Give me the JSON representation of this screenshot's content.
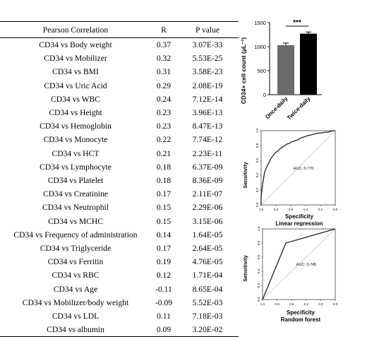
{
  "table": {
    "headers": [
      "Pearson Correlation",
      "R",
      "P value"
    ],
    "rows": [
      {
        "name": "CD34 vs Body weight",
        "r": "0.37",
        "p": "3.07E-33"
      },
      {
        "name": "CD34 vs Mobilizer",
        "r": "0.32",
        "p": "5.53E-25"
      },
      {
        "name": "CD34 vs BMI",
        "r": "0.31",
        "p": "3.58E-23"
      },
      {
        "name": "CD34 vs Uric Acid",
        "r": "0.29",
        "p": "2.08E-19"
      },
      {
        "name": "CD34 vs WBC",
        "r": "0.24",
        "p": "7.12E-14"
      },
      {
        "name": "CD34 vs Height",
        "r": "0.23",
        "p": "3.96E-13"
      },
      {
        "name": "CD34 vs Hemoglobin",
        "r": "0.23",
        "p": "8.47E-13"
      },
      {
        "name": "CD34 vs Monocyte",
        "r": "0.22",
        "p": "7.74E-12"
      },
      {
        "name": "CD34 vs HCT",
        "r": "0.21",
        "p": "2.23E-11"
      },
      {
        "name": "CD34 vs Lymphocyte",
        "r": "0.18",
        "p": "6.37E-09"
      },
      {
        "name": "CD34 vs Platelet",
        "r": "0.18",
        "p": "8.36E-09"
      },
      {
        "name": "CD34 vs Creatinine",
        "r": "0.17",
        "p": "2.11E-07"
      },
      {
        "name": "CD34 vs Neutrophil",
        "r": "0.15",
        "p": "2.29E-06"
      },
      {
        "name": "CD34 vs MCHC",
        "r": "0.15",
        "p": "3.15E-06"
      },
      {
        "name": "CD34 vs Frequency of administration",
        "r": "0.14",
        "p": "1.64E-05"
      },
      {
        "name": "CD34 vs Triglyceride",
        "r": "0.17",
        "p": "2.64E-05"
      },
      {
        "name": "CD34 vs Ferritin",
        "r": "0.19",
        "p": "4.76E-05"
      },
      {
        "name": "CD34 vs RBC",
        "r": "0.12",
        "p": "1.71E-04"
      },
      {
        "name": "CD34 vs Age",
        "r": "-0.11",
        "p": "8.65E-04"
      },
      {
        "name": "CD34 vs Mobilizer/body weight",
        "r": "-0.09",
        "p": "5.52E-03"
      },
      {
        "name": "CD34 vs LDL",
        "r": "0.11",
        "p": "7.18E-03"
      },
      {
        "name": "CD34 vs albumin",
        "r": "0.09",
        "p": "3.20E-02"
      }
    ]
  },
  "chart_data": [
    {
      "type": "bar",
      "categories": [
        "Once-daily",
        "Twice-daily"
      ],
      "values": [
        1030,
        1270
      ],
      "errors": [
        45,
        35
      ],
      "colors": [
        "#6b6b6b",
        "#000000"
      ],
      "ylabel": "CD34+ cell count (μL⁻¹)",
      "yticks": [
        "0",
        "500",
        "1000",
        "1500"
      ],
      "ylim": [
        0,
        1500
      ],
      "significance": "***"
    },
    {
      "type": "line",
      "title": "Linear regression",
      "xlabel": "Specificity",
      "ylabel": "Sensitivity",
      "auc_label": "AUC: 0.770",
      "xticks": [
        "1.0",
        "0.8",
        "0.6",
        "0.4",
        "0.2",
        "0.0"
      ],
      "yticks": [
        "0.0",
        "0.2",
        "0.4",
        "0.6",
        "0.8",
        "1.0"
      ],
      "x_reversed": true,
      "xlim": [
        1.0,
        0.0
      ],
      "ylim": [
        0.0,
        1.0
      ],
      "x": [
        1.0,
        1.0,
        0.99,
        0.98,
        0.97,
        0.96,
        0.95,
        0.93,
        0.91,
        0.89,
        0.87,
        0.85,
        0.83,
        0.8,
        0.77,
        0.74,
        0.71,
        0.68,
        0.65,
        0.62,
        0.59,
        0.56,
        0.53,
        0.5,
        0.47,
        0.44,
        0.41,
        0.38,
        0.34,
        0.3,
        0.26,
        0.22,
        0.18,
        0.14,
        0.1,
        0.06,
        0.03,
        0.0
      ],
      "y": [
        0.0,
        0.1,
        0.2,
        0.28,
        0.34,
        0.4,
        0.45,
        0.5,
        0.54,
        0.58,
        0.62,
        0.65,
        0.68,
        0.71,
        0.73,
        0.76,
        0.78,
        0.8,
        0.82,
        0.83,
        0.85,
        0.86,
        0.87,
        0.88,
        0.9,
        0.91,
        0.92,
        0.93,
        0.94,
        0.95,
        0.96,
        0.97,
        0.97,
        0.98,
        0.98,
        0.99,
        1.0,
        1.0
      ]
    },
    {
      "type": "line",
      "title": "Random forest",
      "xlabel": "Specificity",
      "ylabel": "Sensitivity",
      "auc_label": "AUC: 0.745",
      "xticks": [
        "1.0",
        "0.8",
        "0.6",
        "0.4",
        "0.2",
        "0.0"
      ],
      "yticks": [
        "0.0",
        "0.2",
        "0.4",
        "0.6",
        "0.8",
        "1.0"
      ],
      "x_reversed": true,
      "xlim": [
        1.0,
        0.0
      ],
      "ylim": [
        0.0,
        1.0
      ],
      "x": [
        1.0,
        0.68,
        0.0
      ],
      "y": [
        0.0,
        0.8,
        1.0
      ]
    }
  ]
}
